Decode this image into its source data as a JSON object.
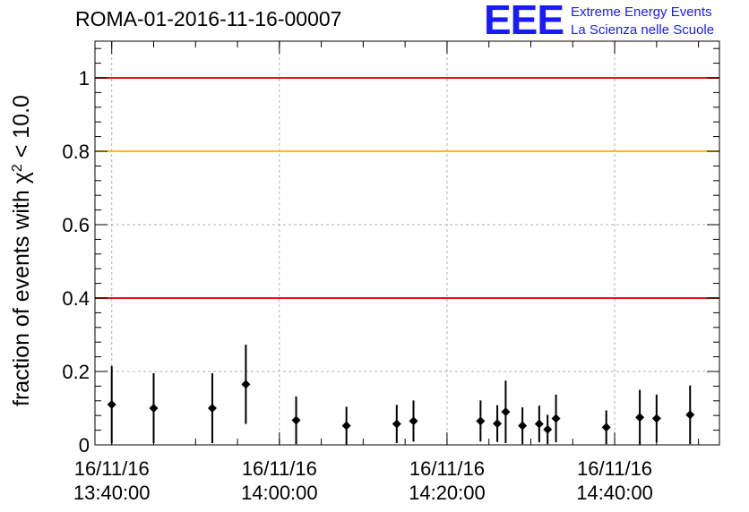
{
  "title": "ROMA-01-2016-11-16-00007",
  "logo": {
    "mark": "EEE",
    "line1": "Extreme Energy Events",
    "line2": "La Scienza nelle Scuole"
  },
  "chart_data": {
    "type": "scatter",
    "title": "ROMA-01-2016-11-16-00007",
    "ylabel_prefix": "fraction of events with χ",
    "ylabel_sup": "2",
    "ylabel_suffix": " < 10.0",
    "xlabel": "",
    "ylim": [
      0,
      1.1
    ],
    "x_range": [
      "13:38:00",
      "14:52:30"
    ],
    "grid": true,
    "y_ticks": [
      {
        "value": 0,
        "label": "0"
      },
      {
        "value": 0.2,
        "label": "0.2"
      },
      {
        "value": 0.4,
        "label": "0.4"
      },
      {
        "value": 0.6,
        "label": "0.6"
      },
      {
        "value": 0.8,
        "label": "0.8"
      },
      {
        "value": 1.0,
        "label": "1"
      }
    ],
    "x_ticks": [
      {
        "time": "13:40:00",
        "date": "16/11/16",
        "clock": "13:40:00"
      },
      {
        "time": "14:00:00",
        "date": "16/11/16",
        "clock": "14:00:00"
      },
      {
        "time": "14:20:00",
        "date": "16/11/16",
        "clock": "14:20:00"
      },
      {
        "time": "14:40:00",
        "date": "16/11/16",
        "clock": "14:40:00"
      }
    ],
    "reference_lines": [
      {
        "y": 1.0,
        "color": "#e8120c"
      },
      {
        "y": 0.8,
        "color": "#ffbf00"
      },
      {
        "y": 0.4,
        "color": "#e8120c"
      }
    ],
    "points": [
      {
        "x": "13:40:00",
        "y": 0.11,
        "err": 0.105
      },
      {
        "x": "13:45:00",
        "y": 0.1,
        "err": 0.095
      },
      {
        "x": "13:52:00",
        "y": 0.1,
        "err": 0.095
      },
      {
        "x": "13:56:00",
        "y": 0.165,
        "err": 0.108
      },
      {
        "x": "14:02:00",
        "y": 0.067,
        "err": 0.065
      },
      {
        "x": "14:08:00",
        "y": 0.052,
        "err": 0.052
      },
      {
        "x": "14:14:00",
        "y": 0.057,
        "err": 0.052
      },
      {
        "x": "14:16:00",
        "y": 0.065,
        "err": 0.056
      },
      {
        "x": "14:24:00",
        "y": 0.065,
        "err": 0.056
      },
      {
        "x": "14:26:00",
        "y": 0.058,
        "err": 0.05
      },
      {
        "x": "14:27:00",
        "y": 0.09,
        "err": 0.085
      },
      {
        "x": "14:29:00",
        "y": 0.052,
        "err": 0.05
      },
      {
        "x": "14:31:00",
        "y": 0.057,
        "err": 0.05
      },
      {
        "x": "14:32:00",
        "y": 0.042,
        "err": 0.04
      },
      {
        "x": "14:33:00",
        "y": 0.072,
        "err": 0.065
      },
      {
        "x": "14:39:00",
        "y": 0.048,
        "err": 0.046
      },
      {
        "x": "14:43:00",
        "y": 0.075,
        "err": 0.075
      },
      {
        "x": "14:45:00",
        "y": 0.072,
        "err": 0.065
      },
      {
        "x": "14:49:00",
        "y": 0.082,
        "err": 0.08
      }
    ],
    "marker_color": "#000000"
  }
}
